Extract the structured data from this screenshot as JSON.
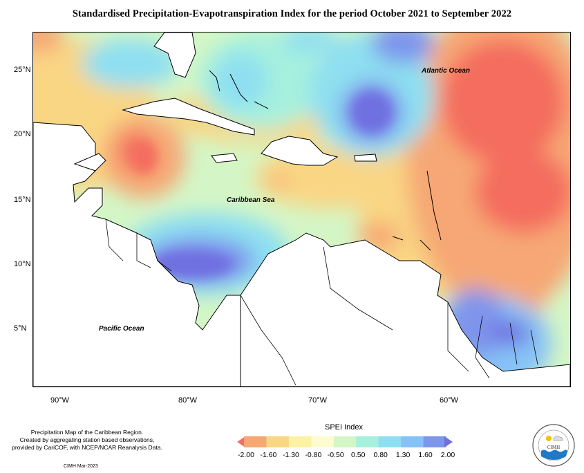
{
  "title": "Standardised Precipitation-Evapotranspiration Index for the period October 2021 to September 2022",
  "lat_labels": [
    "25°N",
    "20°N",
    "15°N",
    "10°N",
    "5°N"
  ],
  "lon_labels": [
    "90°W",
    "80°W",
    "70°W",
    "60°W"
  ],
  "map_labels": {
    "atlantic": "Atlantic Ocean",
    "caribbean": "Caribbean Sea",
    "pacific": "Pacific Ocean"
  },
  "legend": {
    "title": "SPEI Index",
    "ticks": [
      "-2.00",
      "-1.60",
      "-1.30",
      "-0.80",
      "-0.50",
      "0.50",
      "0.80",
      "1.30",
      "1.60",
      "2.00"
    ],
    "colors": [
      "#f46d5f",
      "#f6a774",
      "#f9d684",
      "#fbf2a6",
      "#fdfbd0",
      "#d4f6c6",
      "#a6f0de",
      "#8edff1",
      "#86c2f7",
      "#7e95ec",
      "#6f6fe0"
    ]
  },
  "info": {
    "line1": "Precipitation Map of the Caribbean Region.",
    "line2": "Created by aggregating station based observations,",
    "line3": "provided by CariCOF, with NCEP/NCAR Reanalysis Data.",
    "stamp": "CIMH Mar-2023"
  },
  "logo": {
    "text": "CIMH"
  }
}
